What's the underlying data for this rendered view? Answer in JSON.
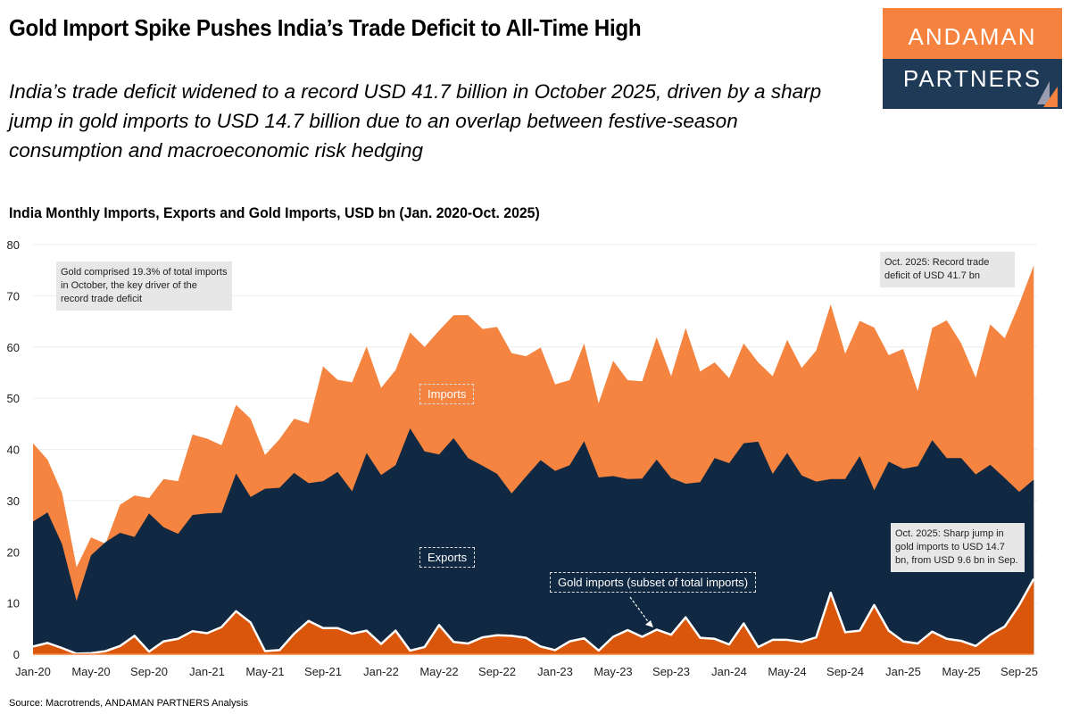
{
  "header": {
    "title": "Gold Import Spike Pushes India’s Trade Deficit to All-Time High",
    "subtitle": "India’s trade deficit widened to a record USD 41.7 billion in October 2025, driven by a sharp jump in gold imports to USD 14.7 billion due to an overlap between festive-season consumption and macroeconomic risk hedging"
  },
  "logo": {
    "line1": "ANDAMAN",
    "line2": "PARTNERS",
    "colors": {
      "top": "#F5823F",
      "bottom": "#1E3A57"
    }
  },
  "source": "Source: Macrotrends, ANDAMAN PARTNERS Analysis",
  "chart_data": {
    "type": "area",
    "title": "India Monthly Imports, Exports and Gold Imports, USD bn (Jan. 2020-Oct. 2025)",
    "xlabel": "",
    "ylabel": "",
    "ylim": [
      0,
      80
    ],
    "yticks": [
      "0",
      "10",
      "20",
      "30",
      "40",
      "50",
      "60",
      "70",
      "80"
    ],
    "xtick_labels": [
      "Jan-20",
      "May-20",
      "Sep-20",
      "Jan-21",
      "May-21",
      "Sep-21",
      "Jan-22",
      "May-22",
      "Sep-22",
      "Jan-23",
      "May-23",
      "Sep-23",
      "Jan-24",
      "May-24",
      "Sep-24",
      "Jan-25",
      "May-25",
      "Sep-25"
    ],
    "x_start": "2020-01",
    "x_end": "2025-10",
    "grid": true,
    "series": [
      {
        "name": "Imports",
        "color": "#F4843F",
        "values": [
          41.2,
          38,
          31.5,
          17,
          22.8,
          21.6,
          29.2,
          31,
          30.5,
          34.2,
          33.8,
          42.9,
          42.1,
          40.8,
          48.7,
          46,
          38.9,
          42,
          46,
          45.1,
          56.2,
          53.6,
          53.1,
          60.1,
          52,
          55.5,
          62.8,
          60,
          63.2,
          66.2,
          66.2,
          63.5,
          63.9,
          58.8,
          58.2,
          59.9,
          52.7,
          53.5,
          60.7,
          49,
          57.3,
          53.5,
          53.3,
          61.9,
          54.3,
          63.7,
          55.2,
          57,
          53.9,
          60.7,
          57,
          54.3,
          61.4,
          55.9,
          59.3,
          68.3,
          58.7,
          65.1,
          63.8,
          58.4,
          59.6,
          51.4,
          63.7,
          65.2,
          60.7,
          54,
          64.4,
          61.7,
          68.4,
          75.9
        ]
      },
      {
        "name": "Exports",
        "color": "#102842",
        "values": [
          25.9,
          27.7,
          21.5,
          10.4,
          19.3,
          21.9,
          23.7,
          22.9,
          27.5,
          24.8,
          23.5,
          27.2,
          27.5,
          27.6,
          35.3,
          30.7,
          32.3,
          32.5,
          35.4,
          33.4,
          33.8,
          35.6,
          31.8,
          39.3,
          35,
          36.9,
          44.1,
          39.6,
          39,
          42.2,
          38.3,
          36.8,
          35.2,
          31.4,
          34.7,
          37.9,
          35.8,
          36.9,
          41.6,
          34.5,
          34.8,
          34.2,
          34.3,
          38,
          34.4,
          33.3,
          33.6,
          38.3,
          37.3,
          41.2,
          41.5,
          35.2,
          39.3,
          34.9,
          33.7,
          34.2,
          34.2,
          38.7,
          32,
          37.6,
          36.2,
          36.7,
          41.8,
          38.3,
          38.3,
          35.1,
          37,
          34.4,
          31.7,
          34.1
        ]
      },
      {
        "name": "Gold imports (subset of total imports)",
        "color": "#D9560B",
        "values": [
          1.5,
          2.2,
          1.2,
          0.1,
          0.2,
          0.6,
          1.6,
          3.6,
          0.5,
          2.5,
          3,
          4.5,
          4.1,
          5.3,
          8.4,
          6.2,
          0.6,
          0.8,
          4,
          6.5,
          5.1,
          5.1,
          4,
          4.6,
          2,
          4.6,
          0.7,
          1.4,
          5.7,
          2.4,
          2.1,
          3.3,
          3.7,
          3.6,
          3.2,
          1.5,
          0.8,
          2.5,
          3.1,
          0.7,
          3.4,
          4.7,
          3.4,
          4.8,
          3.8,
          7.2,
          3.2,
          3,
          1.9,
          6,
          1.4,
          2.8,
          2.8,
          2.4,
          3.3,
          12,
          4.3,
          4.6,
          9.6,
          4.6,
          2.5,
          2.1,
          4.4,
          3,
          2.6,
          1.6,
          3.8,
          5.4,
          9.6,
          14.7
        ]
      }
    ],
    "series_labels": {
      "imports": "Imports",
      "exports": "Exports",
      "gold": "Gold imports (subset of total imports)"
    },
    "annotations": {
      "gold_share": "Gold comprised 19.3% of total imports in October, the key driver of the record trade deficit",
      "record_deficit": "Oct. 2025: Record trade deficit of USD 41.7 bn",
      "gold_jump": "Oct. 2025: Sharp jump in gold imports to USD 14.7 bn, from USD 9.6 bn in Sep."
    }
  }
}
